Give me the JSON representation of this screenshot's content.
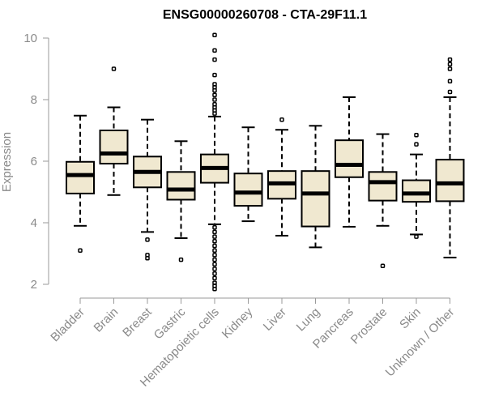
{
  "chart_data": {
    "type": "boxplot",
    "title": "ENSG00000260708 - CTA-29F11.1",
    "xlabel": "",
    "ylabel": "Expression",
    "ylim": [
      1.8,
      10.2
    ],
    "yticks": [
      2,
      4,
      6,
      8,
      10
    ],
    "grid": false,
    "colors": {
      "box_fill": "#f0e8d0",
      "stroke": "#000000",
      "axis": "#9a9a9a",
      "text": "#8a8a8a"
    },
    "categories": [
      "Bladder",
      "Brain",
      "Breast",
      "Gastric",
      "Hematopoietic cells",
      "Kidney",
      "Liver",
      "Lung",
      "Pancreas",
      "Prostate",
      "Skin",
      "Unknown / Other"
    ],
    "boxes": [
      {
        "category": "Bladder",
        "q1": 4.95,
        "median": 5.55,
        "q3": 5.98,
        "whisker_low": 3.9,
        "whisker_high": 7.48,
        "outliers": [
          3.1
        ]
      },
      {
        "category": "Brain",
        "q1": 5.92,
        "median": 6.25,
        "q3": 7.0,
        "whisker_low": 4.9,
        "whisker_high": 7.75,
        "outliers": [
          9.0
        ]
      },
      {
        "category": "Breast",
        "q1": 5.15,
        "median": 5.65,
        "q3": 6.15,
        "whisker_low": 3.7,
        "whisker_high": 7.35,
        "outliers": [
          3.45,
          2.95,
          2.85
        ]
      },
      {
        "category": "Gastric",
        "q1": 4.75,
        "median": 5.08,
        "q3": 5.65,
        "whisker_low": 3.5,
        "whisker_high": 6.65,
        "outliers": [
          2.8
        ]
      },
      {
        "category": "Hematopoietic cells",
        "q1": 5.3,
        "median": 5.78,
        "q3": 6.22,
        "whisker_low": 3.95,
        "whisker_high": 7.45,
        "outliers": [
          10.1,
          9.6,
          9.3,
          8.8,
          8.5,
          8.4,
          8.3,
          8.15,
          8.0,
          7.85,
          7.75,
          7.65,
          7.55,
          3.85,
          3.7,
          3.55,
          3.4,
          3.25,
          3.1,
          2.95,
          2.8,
          2.65,
          2.5,
          2.35,
          2.2,
          2.05,
          1.95,
          1.85
        ]
      },
      {
        "category": "Kidney",
        "q1": 4.55,
        "median": 4.98,
        "q3": 5.6,
        "whisker_low": 4.05,
        "whisker_high": 7.1,
        "outliers": []
      },
      {
        "category": "Liver",
        "q1": 4.78,
        "median": 5.28,
        "q3": 5.68,
        "whisker_low": 3.58,
        "whisker_high": 7.02,
        "outliers": [
          7.35
        ]
      },
      {
        "category": "Lung",
        "q1": 3.88,
        "median": 4.95,
        "q3": 5.68,
        "whisker_low": 3.2,
        "whisker_high": 7.15,
        "outliers": []
      },
      {
        "category": "Pancreas",
        "q1": 5.48,
        "median": 5.88,
        "q3": 6.68,
        "whisker_low": 3.87,
        "whisker_high": 8.08,
        "outliers": []
      },
      {
        "category": "Prostate",
        "q1": 4.72,
        "median": 5.32,
        "q3": 5.65,
        "whisker_low": 3.9,
        "whisker_high": 6.88,
        "outliers": [
          2.6
        ]
      },
      {
        "category": "Skin",
        "q1": 4.68,
        "median": 4.95,
        "q3": 5.38,
        "whisker_low": 3.62,
        "whisker_high": 6.22,
        "outliers": [
          6.85,
          6.55,
          3.55
        ]
      },
      {
        "category": "Unknown / Other",
        "q1": 4.7,
        "median": 5.28,
        "q3": 6.05,
        "whisker_low": 2.87,
        "whisker_high": 8.08,
        "outliers": [
          9.3,
          9.15,
          9.0,
          8.6,
          8.25
        ]
      }
    ]
  }
}
